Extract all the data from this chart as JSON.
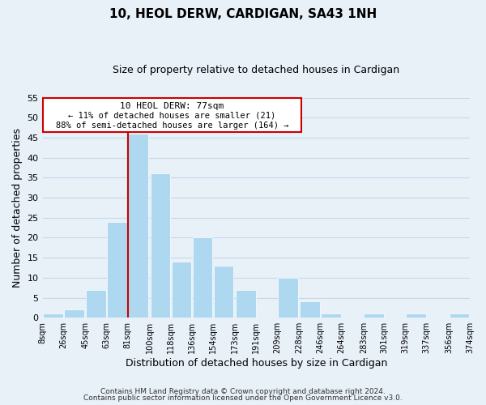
{
  "title": "10, HEOL DERW, CARDIGAN, SA43 1NH",
  "subtitle": "Size of property relative to detached houses in Cardigan",
  "xlabel": "Distribution of detached houses by size in Cardigan",
  "ylabel": "Number of detached properties",
  "bar_color": "#add8f0",
  "grid_color": "#c8d8e8",
  "background_color": "#e8f0f8",
  "marker_line_color": "#cc0000",
  "marker_line_x": 81,
  "bins_left": [
    8,
    26,
    45,
    63,
    81,
    100,
    118,
    136,
    154,
    173,
    191,
    209,
    228,
    246,
    264,
    283,
    301,
    319,
    337,
    356
  ],
  "bin_width": 18,
  "counts": [
    1,
    2,
    7,
    24,
    46,
    36,
    14,
    20,
    13,
    7,
    0,
    10,
    4,
    1,
    0,
    1,
    0,
    1,
    0,
    1
  ],
  "xlim_left": 8,
  "xlim_right": 374,
  "ylim_top": 55,
  "ylim_bottom": 0,
  "xtick_labels": [
    "8sqm",
    "26sqm",
    "45sqm",
    "63sqm",
    "81sqm",
    "100sqm",
    "118sqm",
    "136sqm",
    "154sqm",
    "173sqm",
    "191sqm",
    "209sqm",
    "228sqm",
    "246sqm",
    "264sqm",
    "283sqm",
    "301sqm",
    "319sqm",
    "337sqm",
    "356sqm",
    "374sqm"
  ],
  "xtick_positions": [
    8,
    26,
    45,
    63,
    81,
    100,
    118,
    136,
    154,
    173,
    191,
    209,
    228,
    246,
    264,
    283,
    301,
    319,
    337,
    356,
    374
  ],
  "annotation_title": "10 HEOL DERW: 77sqm",
  "annotation_line1": "← 11% of detached houses are smaller (21)",
  "annotation_line2": "88% of semi-detached houses are larger (164) →",
  "footer_line1": "Contains HM Land Registry data © Crown copyright and database right 2024.",
  "footer_line2": "Contains public sector information licensed under the Open Government Licence v3.0.",
  "yticks": [
    0,
    5,
    10,
    15,
    20,
    25,
    30,
    35,
    40,
    45,
    50,
    55
  ]
}
